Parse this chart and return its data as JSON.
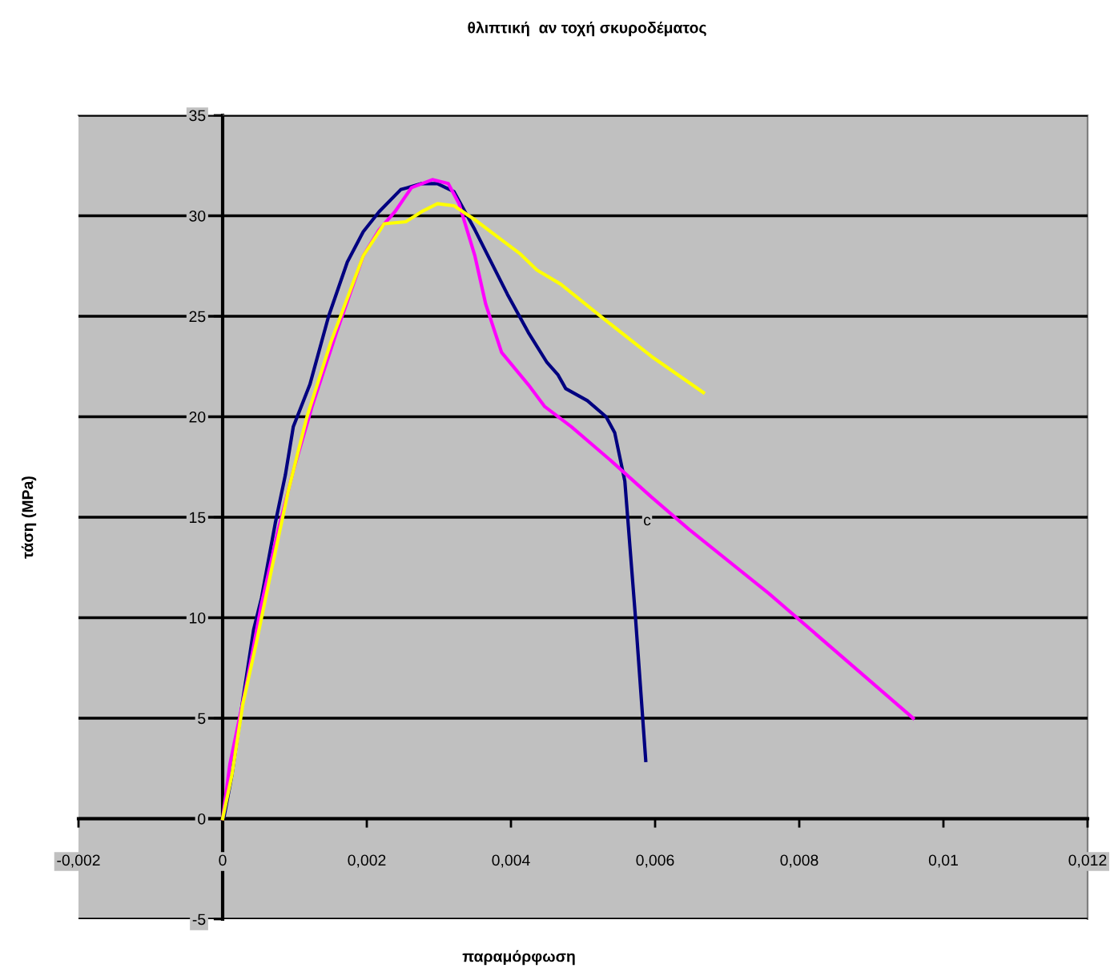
{
  "chart_data": {
    "type": "line",
    "title": "θλιπτική  αν τοχή σκυροδέματος",
    "xlabel": "παραμόρφωση",
    "ylabel": "τάση (MPa)",
    "xlim": [
      -0.002,
      0.012
    ],
    "ylim": [
      -5,
      35
    ],
    "xticks": [
      {
        "value": -0.002,
        "label": "-0,002"
      },
      0,
      {
        "value": 0.002,
        "label": "0,002"
      },
      {
        "value": 0.004,
        "label": "0,004"
      },
      {
        "value": 0.006,
        "label": "0,006"
      },
      {
        "value": 0.008,
        "label": "0,008"
      },
      {
        "value": 0.01,
        "label": "0,01"
      },
      {
        "value": 0.012,
        "label": "0,012"
      }
    ],
    "yticks": [
      -5,
      0,
      5,
      10,
      15,
      20,
      25,
      30,
      35
    ],
    "grid": "y",
    "marker": "none",
    "line_style": "solid",
    "annotations": [
      "c"
    ],
    "series": [
      {
        "color": "#000080",
        "x": [
          2e-05,
          0.00013,
          0.00028,
          0.00043,
          0.00054,
          0.00073,
          0.00087,
          0.00098,
          0.00121,
          0.00147,
          0.00173,
          0.00195,
          0.00217,
          0.00247,
          0.00276,
          0.00298,
          0.00321,
          0.0035,
          0.00395,
          0.00424,
          0.0045,
          0.00465,
          0.00476,
          0.00506,
          0.00532,
          0.00544,
          0.00558,
          0.00573,
          0.00587
        ],
        "values": [
          0.1,
          2.2,
          5.9,
          9.4,
          11.0,
          14.7,
          17.1,
          19.5,
          21.6,
          25.0,
          27.7,
          29.2,
          30.2,
          31.3,
          31.6,
          31.6,
          31.2,
          29.3,
          26.1,
          24.2,
          22.7,
          22.1,
          21.4,
          20.8,
          20.0,
          19.2,
          16.8,
          9.9,
          2.9
        ]
      },
      {
        "color": "#ff00ff",
        "x": [
          0,
          0.0001,
          0.00032,
          0.00054,
          0.00076,
          0.00098,
          0.00124,
          0.00158,
          0.00195,
          0.00217,
          0.00239,
          0.00262,
          0.00291,
          0.00313,
          0.00328,
          0.0035,
          0.00365,
          0.00387,
          0.00424,
          0.00447,
          0.00484,
          0.00536,
          0.00595,
          0.00647,
          0.00758,
          0.00958
        ],
        "values": [
          0,
          2.7,
          6.5,
          10.7,
          14.2,
          17.3,
          20.5,
          24.2,
          28.0,
          29.3,
          30.2,
          31.4,
          31.8,
          31.6,
          30.6,
          28.0,
          25.6,
          23.2,
          21.6,
          20.5,
          19.5,
          17.9,
          16.0,
          14.4,
          11.2,
          5.0
        ]
      },
      {
        "color": "#ffff00",
        "x": [
          0,
          0.00013,
          0.00028,
          0.00047,
          0.00069,
          0.00091,
          0.00117,
          0.0015,
          0.00195,
          0.00224,
          0.00254,
          0.00276,
          0.00298,
          0.00321,
          0.0035,
          0.00387,
          0.00413,
          0.00436,
          0.00469,
          0.00528,
          0.00595,
          0.00667
        ],
        "values": [
          0,
          2.2,
          5.7,
          8.8,
          12.6,
          16.3,
          20.0,
          23.7,
          28.0,
          29.6,
          29.7,
          30.2,
          30.6,
          30.5,
          29.8,
          28.8,
          28.1,
          27.3,
          26.6,
          24.9,
          23.0,
          21.2
        ]
      }
    ]
  }
}
